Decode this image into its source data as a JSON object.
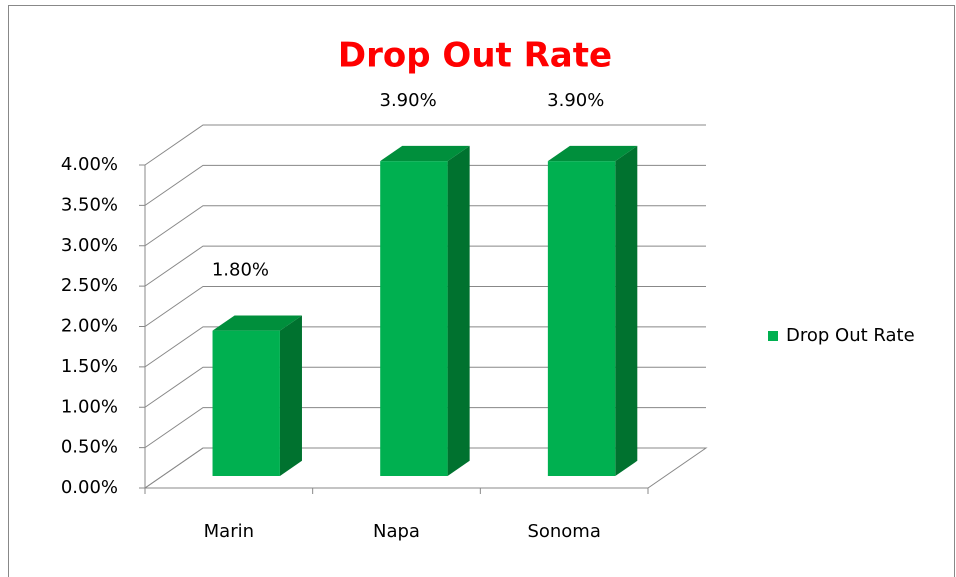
{
  "chart_data": {
    "type": "bar",
    "title": "Drop Out Rate",
    "title_color": "#ff0000",
    "categories": [
      "Marin",
      "Napa",
      "Sonoma"
    ],
    "series": [
      {
        "name": "Drop Out Rate",
        "color": "#00b050",
        "values": [
          1.8,
          3.9,
          3.9
        ],
        "value_labels": [
          "1.80%",
          "3.90%",
          "3.90%"
        ]
      }
    ],
    "ylim": [
      0,
      4
    ],
    "yticks": [
      {
        "value": 0,
        "label": "0.00%"
      },
      {
        "value": 0.5,
        "label": "0.50%"
      },
      {
        "value": 1,
        "label": "1.00%"
      },
      {
        "value": 1.5,
        "label": "1.50%"
      },
      {
        "value": 2,
        "label": "2.00%"
      },
      {
        "value": 2.5,
        "label": "2.50%"
      },
      {
        "value": 3,
        "label": "3.00%"
      },
      {
        "value": 3.5,
        "label": "3.50%"
      },
      {
        "value": 4,
        "label": "4.00%"
      }
    ],
    "grid": true,
    "legend": "right"
  }
}
